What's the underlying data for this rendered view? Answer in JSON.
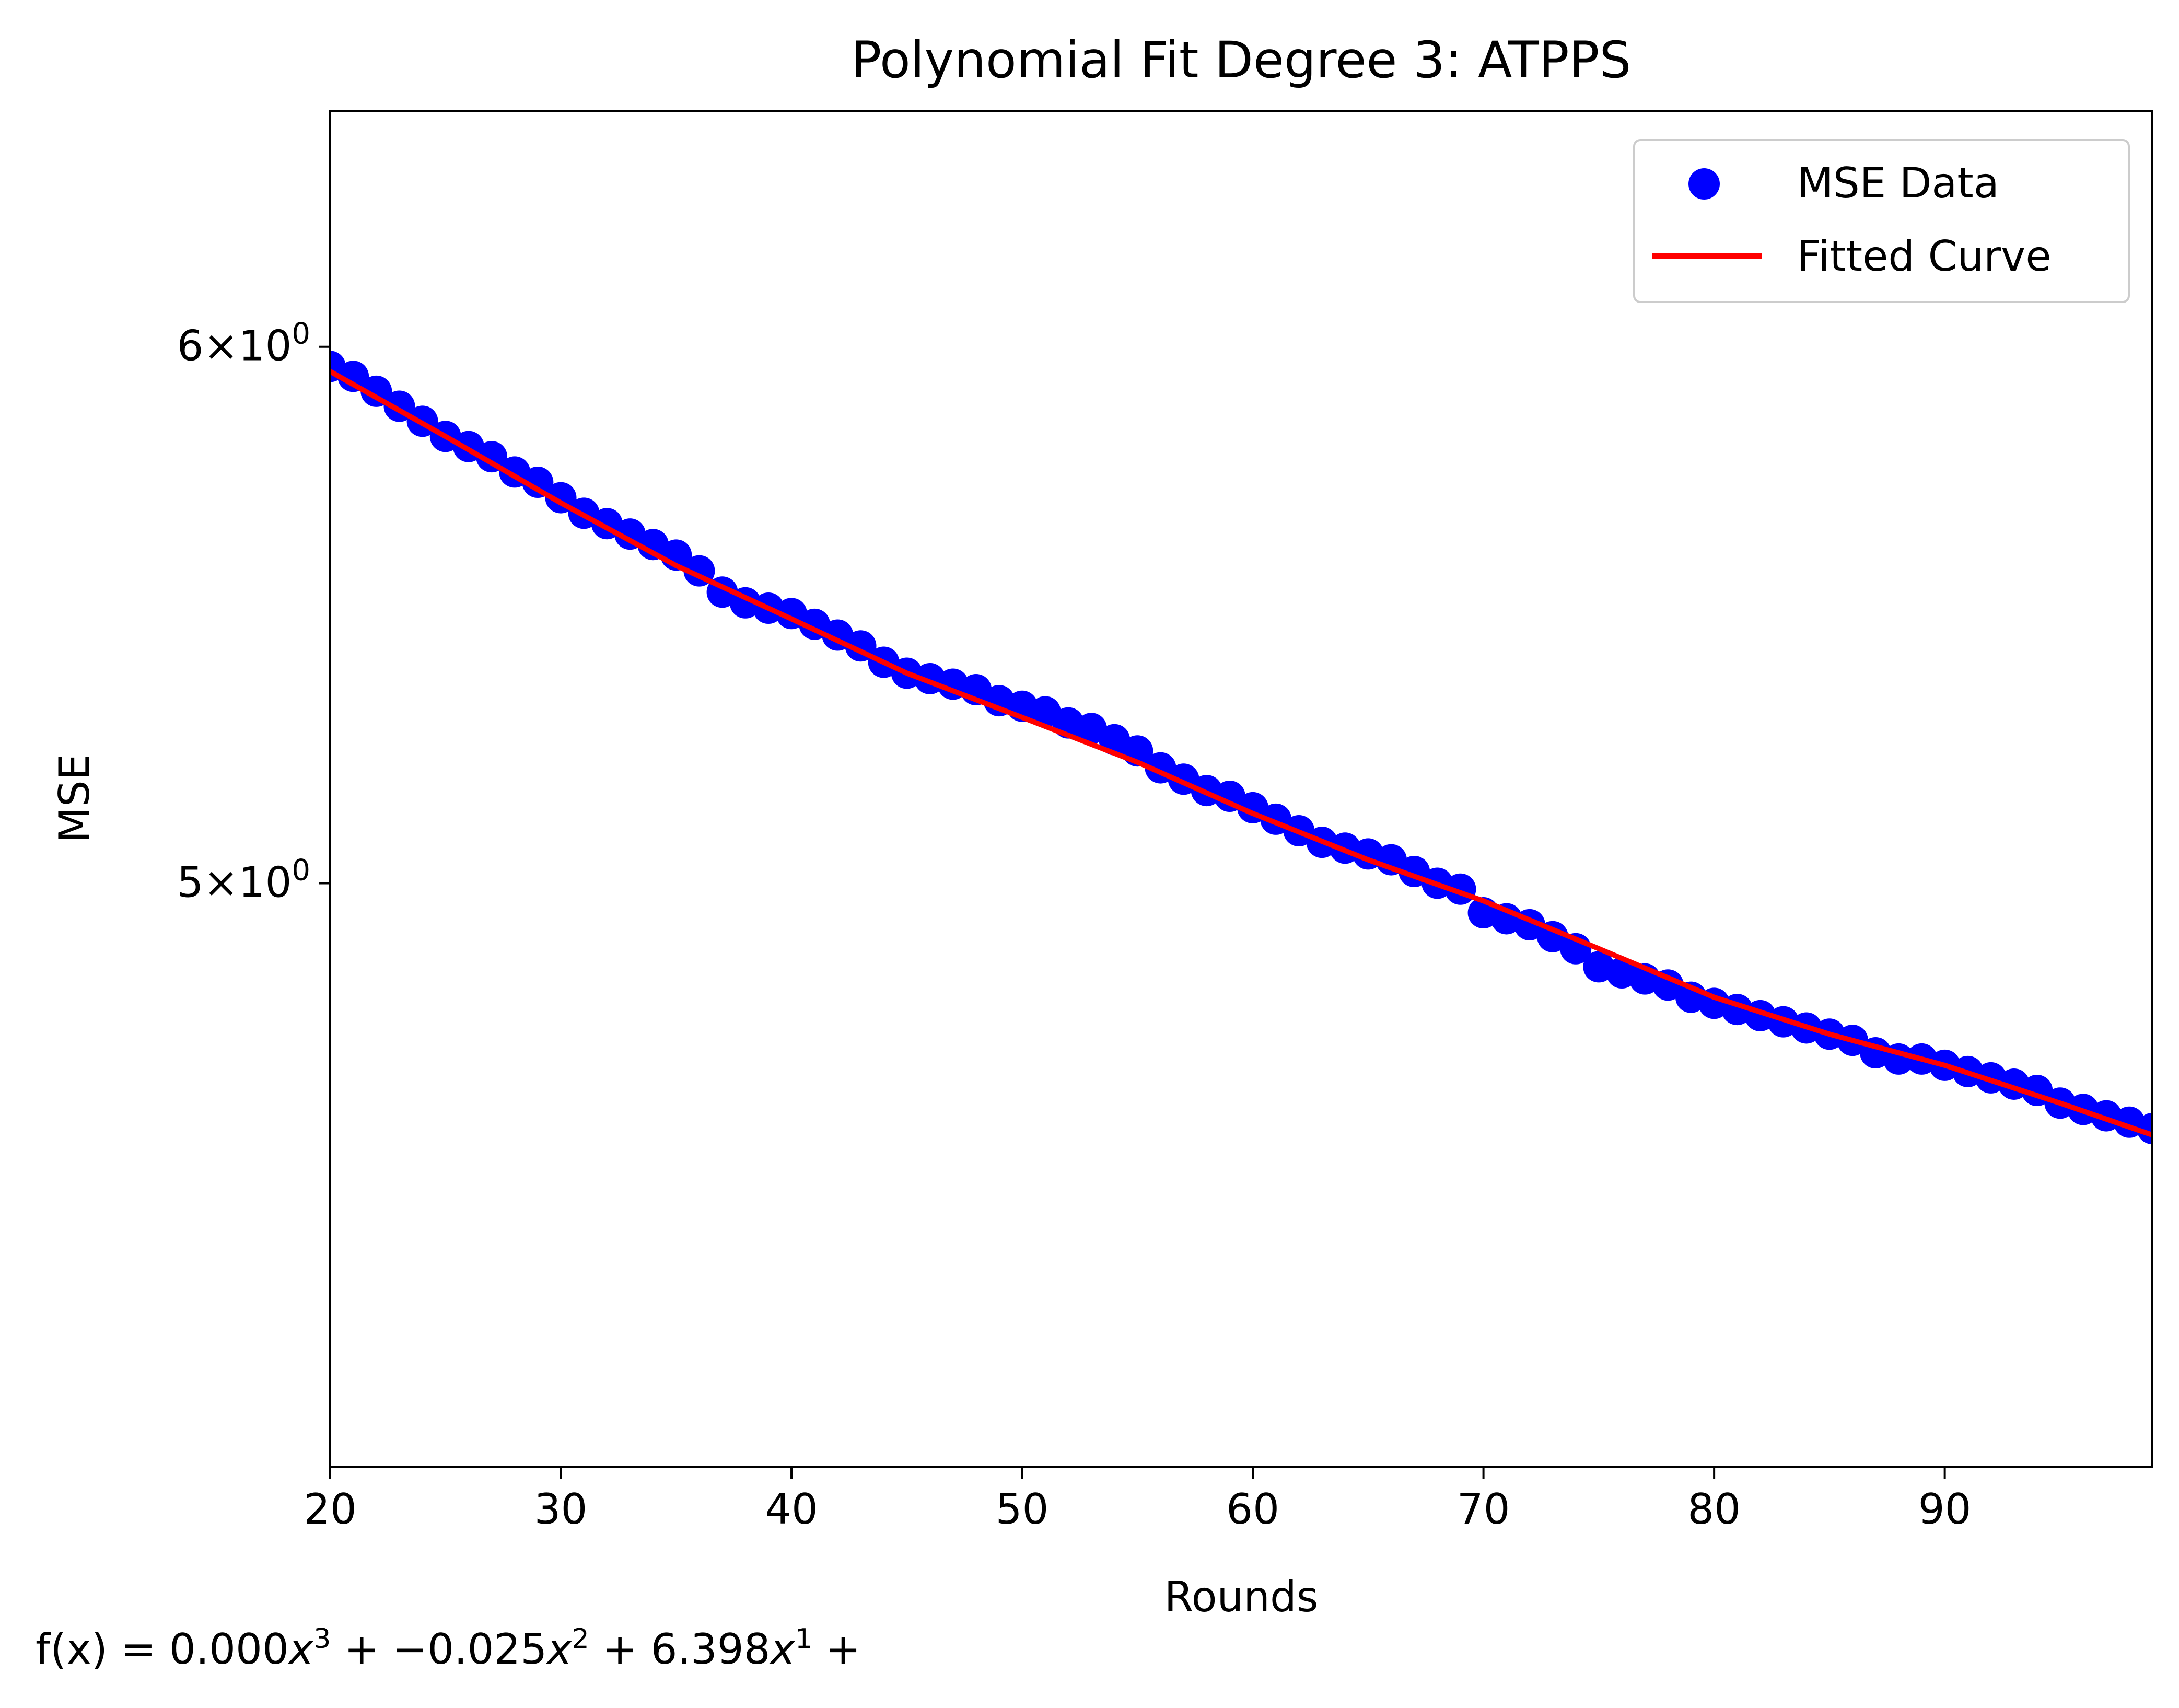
{
  "chart_data": {
    "type": "scatter",
    "title": "Polynomial Fit Degree 3: ATPPS",
    "xlabel": "Rounds",
    "ylabel": "MSE",
    "xlim": [
      20,
      99
    ],
    "ylim": [
      4.1,
      6.5
    ],
    "y_scale": "log",
    "grid": false,
    "legend_position": "top-right",
    "x_ticks": [
      20,
      30,
      40,
      50,
      60,
      70,
      80,
      90
    ],
    "x_tick_labels": [
      "20",
      "30",
      "40",
      "50",
      "60",
      "70",
      "80",
      "90"
    ],
    "y_ticks": [
      {
        "value": 6,
        "mantissa": "6",
        "base": "10",
        "exponent": "0"
      },
      {
        "value": 5,
        "mantissa": "5",
        "base": "10",
        "exponent": "0"
      }
    ],
    "series": [
      {
        "name": "MSE Data",
        "kind": "scatter",
        "color": "#0000ff",
        "x": [
          20,
          21,
          22,
          23,
          24,
          25,
          26,
          27,
          28,
          29,
          30,
          31,
          32,
          33,
          34,
          35,
          36,
          37,
          38,
          39,
          40,
          41,
          42,
          43,
          44,
          45,
          46,
          47,
          48,
          49,
          50,
          51,
          52,
          53,
          54,
          55,
          56,
          57,
          58,
          59,
          60,
          61,
          62,
          63,
          64,
          65,
          66,
          67,
          68,
          69,
          70,
          71,
          72,
          73,
          74,
          75,
          76,
          77,
          78,
          79,
          80,
          81,
          82,
          83,
          84,
          85,
          86,
          87,
          88,
          89,
          90,
          91,
          92,
          93,
          94,
          95,
          96,
          97,
          98,
          99
        ],
        "y": [
          5.96,
          5.94,
          5.91,
          5.88,
          5.85,
          5.82,
          5.8,
          5.78,
          5.75,
          5.73,
          5.7,
          5.67,
          5.65,
          5.63,
          5.61,
          5.59,
          5.56,
          5.52,
          5.5,
          5.49,
          5.48,
          5.46,
          5.44,
          5.42,
          5.39,
          5.37,
          5.36,
          5.35,
          5.34,
          5.32,
          5.31,
          5.3,
          5.28,
          5.27,
          5.25,
          5.23,
          5.2,
          5.18,
          5.16,
          5.15,
          5.13,
          5.11,
          5.09,
          5.07,
          5.06,
          5.05,
          5.04,
          5.02,
          5.0,
          4.99,
          4.95,
          4.94,
          4.93,
          4.91,
          4.89,
          4.86,
          4.85,
          4.84,
          4.83,
          4.81,
          4.8,
          4.79,
          4.78,
          4.77,
          4.76,
          4.75,
          4.74,
          4.72,
          4.71,
          4.71,
          4.7,
          4.69,
          4.68,
          4.67,
          4.66,
          4.64,
          4.63,
          4.62,
          4.61,
          4.6
        ]
      },
      {
        "name": "Fitted Curve",
        "kind": "line",
        "color": "#ff0000",
        "x": [
          20,
          25,
          30,
          35,
          40,
          45,
          50,
          55,
          60,
          65,
          70,
          75,
          80,
          85,
          90,
          95,
          99
        ],
        "y": [
          5.95,
          5.82,
          5.69,
          5.57,
          5.47,
          5.37,
          5.29,
          5.21,
          5.12,
          5.04,
          4.97,
          4.89,
          4.81,
          4.75,
          4.7,
          4.64,
          4.59
        ]
      }
    ],
    "annotation": {
      "prefix": "f(x) = 0.000",
      "t1": "x",
      "e1": "3",
      "mid1": " + −0.025",
      "t2": "x",
      "e2": "2",
      "mid2": " + 6.398",
      "t3": "x",
      "e3": "1",
      "suffix": " +"
    }
  }
}
